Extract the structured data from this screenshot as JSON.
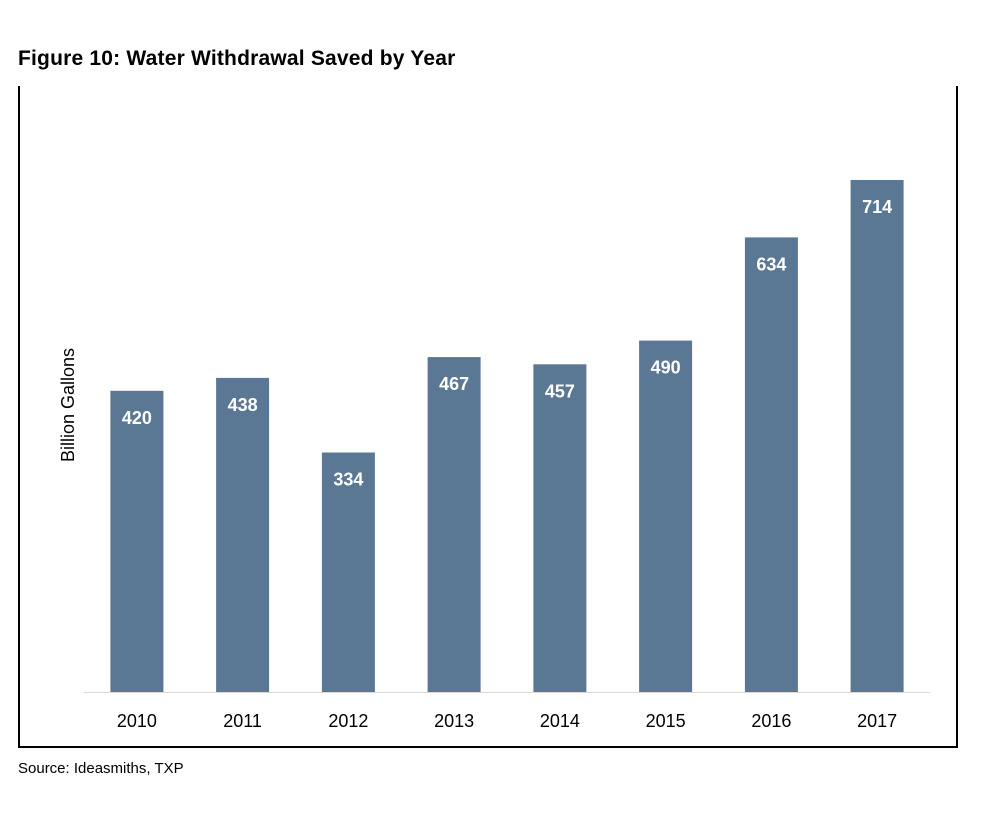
{
  "figure": {
    "title": "Figure 10: Water Withdrawal Saved by Year",
    "source": "Source: Ideasmiths, TXP"
  },
  "colors": {
    "bar": "#5a7893",
    "bar_label": "#ffffff",
    "axis_line": "#d9d9d9",
    "text": "#000000"
  },
  "chart_data": {
    "type": "bar",
    "title": "Figure 10: Water Withdrawal Saved by Year",
    "xlabel": "",
    "ylabel": "Billion Gallons",
    "categories": [
      "2010",
      "2011",
      "2012",
      "2013",
      "2014",
      "2015",
      "2016",
      "2017"
    ],
    "values": [
      420,
      438,
      334,
      467,
      457,
      490,
      634,
      714
    ],
    "data_labels": [
      "420",
      "438",
      "334",
      "467",
      "457",
      "490",
      "634",
      "714"
    ],
    "ylim": [
      0,
      800
    ],
    "grid": false,
    "legend": "none",
    "y_tick_labels_shown": false
  }
}
